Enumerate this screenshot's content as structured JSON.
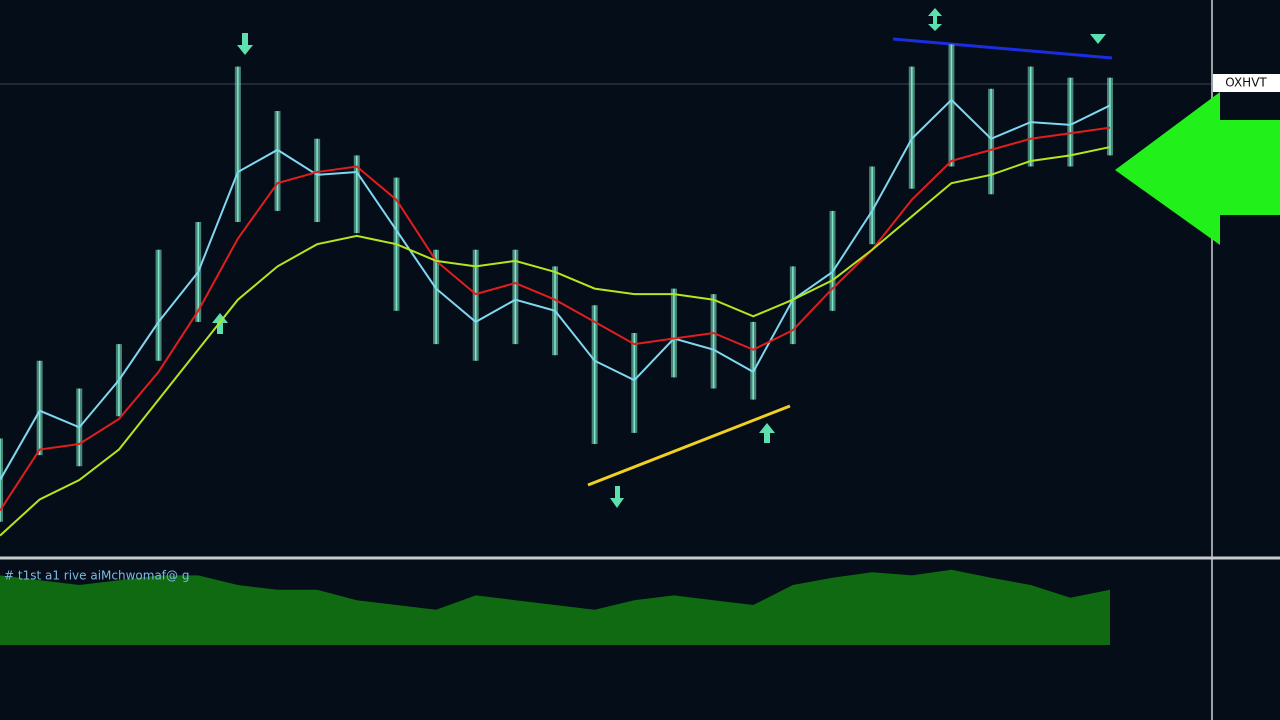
{
  "chart_data": {
    "type": "line",
    "x": [
      0,
      1,
      2,
      3,
      4,
      5,
      6,
      7,
      8,
      9,
      10,
      11,
      12,
      13,
      14,
      15,
      16,
      17,
      18,
      19,
      20,
      21,
      22,
      23,
      24,
      25,
      26,
      27,
      28
    ],
    "xlim": [
      0,
      28
    ],
    "ylim": [
      0,
      100
    ],
    "candles": {
      "color": "#7fe8c8",
      "high": [
        21,
        35,
        30,
        38,
        55,
        60,
        88,
        80,
        75,
        72,
        68,
        55,
        55,
        55,
        52,
        45,
        40,
        48,
        47,
        42,
        52,
        62,
        70,
        88,
        92,
        84,
        88,
        86,
        86
      ],
      "low": [
        6,
        18,
        16,
        25,
        35,
        42,
        60,
        62,
        60,
        58,
        44,
        38,
        35,
        38,
        36,
        20,
        22,
        32,
        30,
        28,
        38,
        44,
        56,
        66,
        70,
        65,
        70,
        70,
        72
      ]
    },
    "series": [
      {
        "color": "#7fd8f0",
        "values": [
          13.5,
          26,
          23,
          31.5,
          42,
          51,
          69,
          73,
          68.5,
          69,
          58.5,
          48,
          42,
          46,
          44,
          35,
          31.5,
          39,
          37,
          33,
          46,
          51,
          62,
          75,
          82,
          75,
          78,
          77.5,
          81
        ]
      },
      {
        "color": "#e01e1e",
        "values": [
          8,
          19,
          20,
          24.5,
          33,
          44,
          57,
          67,
          69,
          70,
          64,
          53,
          47,
          49,
          46,
          42,
          38,
          39,
          40,
          37,
          40.5,
          48,
          55,
          64,
          71,
          73,
          75,
          76,
          77
        ]
      },
      {
        "color": "#b5e61d",
        "values": [
          3.5,
          10,
          13.5,
          19,
          28,
          37,
          46,
          52,
          56,
          57.5,
          56,
          53,
          52,
          53,
          51,
          48,
          47,
          47,
          46,
          43,
          46,
          49.5,
          55,
          61,
          67,
          68.5,
          71,
          72,
          73.5
        ]
      }
    ],
    "price_label": "OXHVT",
    "indicator": {
      "label": "# t1st a1 rive  aiMchwomaf@ g",
      "color": "#0f6a12",
      "ylim": [
        0,
        100
      ],
      "values": [
        87,
        81,
        75,
        81,
        87,
        87,
        75,
        69,
        69,
        56,
        50,
        44,
        62,
        56,
        50,
        44,
        56,
        62,
        56,
        50,
        75,
        84,
        91,
        87,
        94,
        84,
        75,
        59,
        69
      ]
    }
  }
}
